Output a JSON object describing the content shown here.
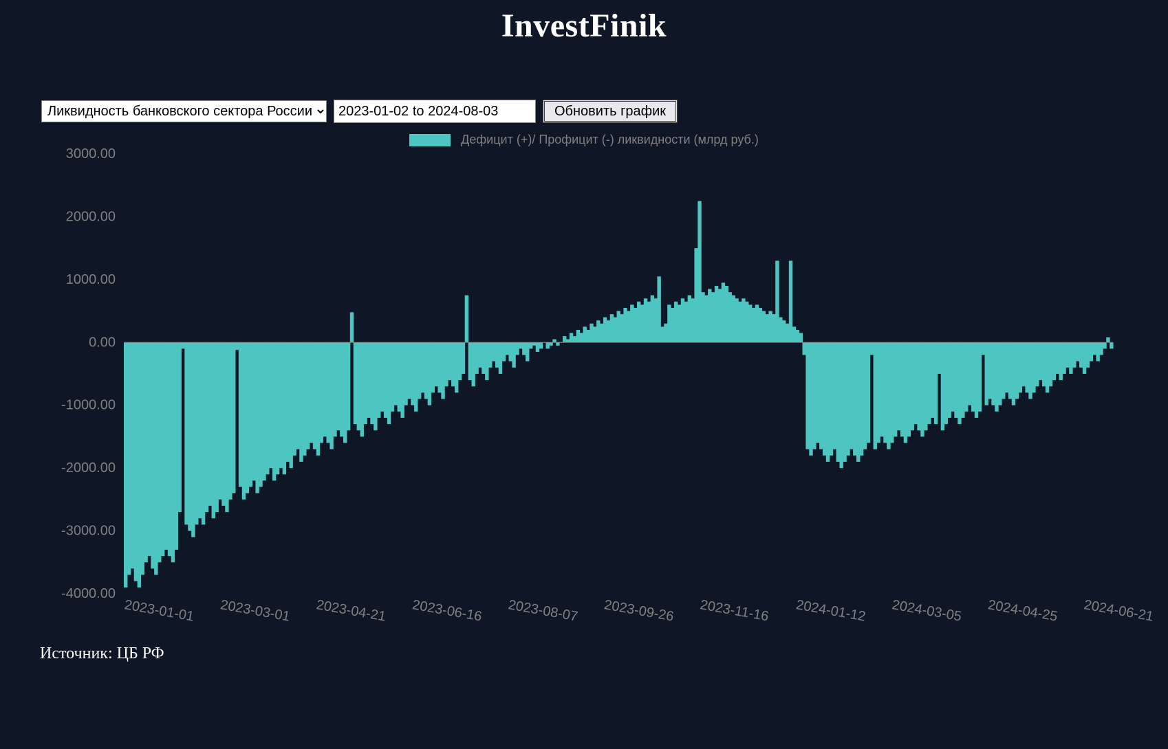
{
  "header": {
    "brand": "InvestFinik"
  },
  "controls": {
    "metric_selected": "Ликвидность банковского сектора России",
    "daterange_value": "2023-01-02 to 2024-08-03",
    "refresh_label": "Обновить график"
  },
  "legend": {
    "label": "Дефицит (+)/ Профицит (-) ликвидности (млрд руб.)",
    "swatch_color": "#4dc5c1"
  },
  "source": {
    "text": "Источник: ЦБ РФ"
  },
  "chart": {
    "type": "area-bar",
    "background_color": "#0f1626",
    "series_color": "#4dc5c1",
    "axis_label_color": "#808080",
    "baseline_color": "#808080",
    "label_fontsize": 20,
    "ylim": [
      -4000,
      3000
    ],
    "ytick_step": 1000,
    "yticks": [
      "3000.00",
      "2000.00",
      "1000.00",
      "0.00",
      "-1000.00",
      "-2000.00",
      "-3000.00",
      "-4000.00"
    ],
    "xticks": [
      "2023-01-01",
      "2023-03-01",
      "2023-04-21",
      "2023-06-16",
      "2023-08-07",
      "2023-09-26",
      "2023-11-16",
      "2024-01-12",
      "2024-03-05",
      "2024-04-25",
      "2024-06-21"
    ],
    "values": [
      -3900,
      -3700,
      -3600,
      -3800,
      -3900,
      -3700,
      -3500,
      -3400,
      -3600,
      -3700,
      -3500,
      -3400,
      -3300,
      -3400,
      -3500,
      -3300,
      -2700,
      -100,
      -2900,
      -3000,
      -3100,
      -2900,
      -2800,
      -2900,
      -2700,
      -2600,
      -2800,
      -2700,
      -2500,
      -2600,
      -2700,
      -2500,
      -2400,
      -120,
      -2300,
      -2500,
      -2400,
      -2300,
      -2200,
      -2400,
      -2300,
      -2200,
      -2100,
      -2000,
      -2200,
      -2100,
      -2000,
      -2100,
      -1900,
      -2000,
      -1800,
      -1700,
      -1900,
      -1800,
      -1700,
      -1600,
      -1700,
      -1800,
      -1600,
      -1500,
      -1600,
      -1700,
      -1500,
      -1400,
      -1500,
      -1600,
      -1400,
      480,
      -1300,
      -1400,
      -1500,
      -1300,
      -1200,
      -1300,
      -1400,
      -1200,
      -1100,
      -1200,
      -1300,
      -1100,
      -1000,
      -1100,
      -1200,
      -1000,
      -900,
      -1000,
      -1100,
      -900,
      -800,
      -900,
      -1000,
      -800,
      -700,
      -800,
      -900,
      -700,
      -600,
      -700,
      -800,
      -600,
      -500,
      750,
      -600,
      -700,
      -500,
      -400,
      -500,
      -600,
      -400,
      -300,
      -400,
      -500,
      -300,
      -200,
      -300,
      -400,
      -200,
      -100,
      -200,
      -300,
      -100,
      -50,
      -150,
      -100,
      0,
      -100,
      -50,
      50,
      -50,
      0,
      100,
      50,
      150,
      100,
      200,
      150,
      250,
      200,
      300,
      250,
      350,
      300,
      400,
      350,
      450,
      400,
      500,
      450,
      550,
      500,
      600,
      550,
      650,
      600,
      700,
      650,
      750,
      700,
      1050,
      250,
      300,
      600,
      550,
      650,
      600,
      700,
      650,
      750,
      700,
      1500,
      2250,
      800,
      750,
      850,
      800,
      900,
      850,
      950,
      900,
      800,
      750,
      700,
      650,
      700,
      650,
      600,
      550,
      600,
      550,
      500,
      450,
      500,
      450,
      1300,
      400,
      350,
      300,
      1300,
      250,
      200,
      150,
      -200,
      -1700,
      -1800,
      -1700,
      -1600,
      -1700,
      -1800,
      -1900,
      -1800,
      -1700,
      -1900,
      -2000,
      -1900,
      -1800,
      -1700,
      -1800,
      -1900,
      -1800,
      -1700,
      -1600,
      -200,
      -1700,
      -1600,
      -1500,
      -1600,
      -1700,
      -1600,
      -1500,
      -1400,
      -1500,
      -1600,
      -1500,
      -1400,
      -1300,
      -1400,
      -1500,
      -1400,
      -1300,
      -1200,
      -1300,
      -500,
      -1400,
      -1300,
      -1200,
      -1100,
      -1200,
      -1300,
      -1200,
      -1100,
      -1000,
      -1100,
      -1200,
      -1100,
      -200,
      -1000,
      -900,
      -1000,
      -1100,
      -1000,
      -900,
      -800,
      -900,
      -1000,
      -900,
      -800,
      -700,
      -800,
      -900,
      -800,
      -700,
      -600,
      -700,
      -800,
      -700,
      -600,
      -500,
      -600,
      -500,
      -400,
      -500,
      -400,
      -300,
      -400,
      -500,
      -400,
      -300,
      -200,
      -300,
      -200,
      -100,
      80,
      -100
    ]
  }
}
